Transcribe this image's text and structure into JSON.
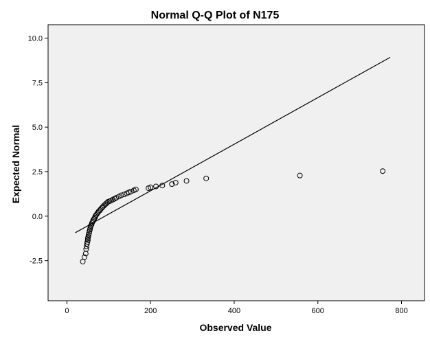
{
  "chart_data": {
    "type": "scatter",
    "title": "Normal Q-Q Plot of N175",
    "xlabel": "Observed Value",
    "ylabel": "Expected Normal",
    "xlim": [
      -45,
      855
    ],
    "ylim": [
      -4.75,
      10.75
    ],
    "xticks": [
      {
        "value": 0,
        "label": "0"
      },
      {
        "value": 200,
        "label": "200"
      },
      {
        "value": 400,
        "label": "400"
      },
      {
        "value": 600,
        "label": "600"
      },
      {
        "value": 800,
        "label": "800"
      }
    ],
    "yticks": [
      {
        "value": -2.5,
        "label": "-2.5"
      },
      {
        "value": 0,
        "label": "0.0"
      },
      {
        "value": 2.5,
        "label": "2.5"
      },
      {
        "value": 5,
        "label": "5.0"
      },
      {
        "value": 7.5,
        "label": "7.5"
      },
      {
        "value": 10,
        "label": "10.0"
      }
    ],
    "grid": false,
    "plot_background": "#f0f0f0",
    "marker_color": "#000000",
    "reference_line": {
      "x": [
        20,
        773
      ],
      "y": [
        -0.93,
        8.92
      ]
    },
    "points": [
      [
        38,
        -2.55
      ],
      [
        42,
        -2.3
      ],
      [
        45,
        -2.1
      ],
      [
        46,
        -1.85
      ],
      [
        47,
        -1.7
      ],
      [
        48,
        -1.55
      ],
      [
        49,
        -1.45
      ],
      [
        50,
        -1.35
      ],
      [
        50,
        -1.25
      ],
      [
        51,
        -1.15
      ],
      [
        52,
        -1.05
      ],
      [
        53,
        -0.95
      ],
      [
        54,
        -0.85
      ],
      [
        55,
        -0.75
      ],
      [
        56,
        -0.65
      ],
      [
        57,
        -0.55
      ],
      [
        59,
        -0.47
      ],
      [
        60,
        -0.38
      ],
      [
        62,
        -0.3
      ],
      [
        63,
        -0.22
      ],
      [
        65,
        -0.15
      ],
      [
        67,
        -0.08
      ],
      [
        68,
        0.0
      ],
      [
        70,
        0.07
      ],
      [
        72,
        0.13
      ],
      [
        74,
        0.2
      ],
      [
        76,
        0.27
      ],
      [
        79,
        0.33
      ],
      [
        81,
        0.4
      ],
      [
        84,
        0.47
      ],
      [
        86,
        0.53
      ],
      [
        89,
        0.6
      ],
      [
        92,
        0.67
      ],
      [
        95,
        0.73
      ],
      [
        98,
        0.8
      ],
      [
        102,
        0.84
      ],
      [
        106,
        0.88
      ],
      [
        110,
        0.93
      ],
      [
        114,
        0.98
      ],
      [
        118,
        1.03
      ],
      [
        124,
        1.1
      ],
      [
        130,
        1.17
      ],
      [
        137,
        1.22
      ],
      [
        143,
        1.28
      ],
      [
        148,
        1.33
      ],
      [
        153,
        1.38
      ],
      [
        160,
        1.45
      ],
      [
        165,
        1.5
      ],
      [
        195,
        1.57
      ],
      [
        200,
        1.62
      ],
      [
        213,
        1.67
      ],
      [
        228,
        1.72
      ],
      [
        251,
        1.8
      ],
      [
        260,
        1.88
      ],
      [
        286,
        1.98
      ],
      [
        333,
        2.12
      ],
      [
        557,
        2.28
      ],
      [
        755,
        2.53
      ]
    ]
  }
}
